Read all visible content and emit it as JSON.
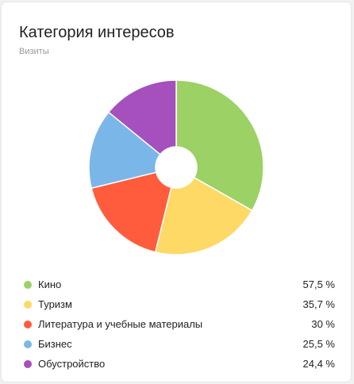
{
  "header": {
    "title": "Категория интересов",
    "subtitle": "Визиты"
  },
  "chart_data": {
    "type": "pie",
    "title": "Категория интересов",
    "subtitle": "Визиты",
    "categories": [
      "Кино",
      "Туризм",
      "Литература и учебные материалы",
      "Бизнес",
      "Обустройство"
    ],
    "values": [
      57.5,
      35.7,
      30,
      25.5,
      24.4
    ],
    "value_labels": [
      "57,5 %",
      "35,7 %",
      "30 %",
      "25,5 %",
      "24,4 %"
    ],
    "colors": [
      "#9bd165",
      "#ffd966",
      "#ff5c3e",
      "#7bb6e9",
      "#a550bd"
    ],
    "donut": true,
    "legend": "bottom"
  }
}
